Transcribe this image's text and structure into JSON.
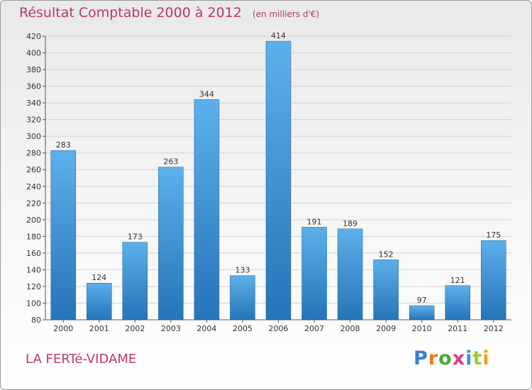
{
  "chart_data": {
    "type": "bar",
    "title": "Résultat Comptable 2000 à 2012",
    "subtitle": "(en milliers d'€)",
    "categories": [
      "2000",
      "2001",
      "2002",
      "2003",
      "2004",
      "2005",
      "2006",
      "2007",
      "2008",
      "2009",
      "2010",
      "2011",
      "2012"
    ],
    "values": [
      283,
      124,
      173,
      263,
      344,
      133,
      414,
      191,
      189,
      152,
      97,
      121,
      175
    ],
    "ylim": [
      80,
      420
    ],
    "ytick_step": 20,
    "xlabel": "",
    "ylabel": "",
    "grid": true
  },
  "commune": "LA FERTé-VIDAME",
  "logo": {
    "letters": [
      "P",
      "r",
      "o",
      "x",
      "i",
      "t",
      "i"
    ],
    "colors": [
      "#3a7fd0",
      "#f07a1a",
      "#4aa838",
      "#e23a8a",
      "#2a9ad8",
      "#9acd32",
      "#f0a020"
    ]
  },
  "colors": {
    "bar_dark": "#2674b8",
    "bar_light": "#5cb0ea",
    "title": "#b83a5c"
  }
}
